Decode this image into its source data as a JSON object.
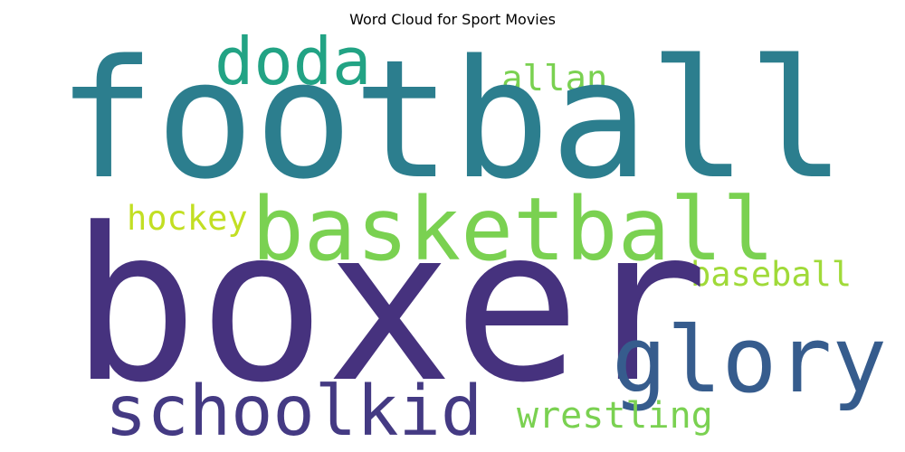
{
  "chart_data": {
    "type": "wordcloud",
    "title": "Word Cloud for Sport Movies",
    "words": [
      {
        "id": "doda",
        "text": "doda",
        "weight": 0.31,
        "color": "#22a384"
      },
      {
        "id": "allan",
        "text": "allan",
        "weight": 0.17,
        "color": "#7ad151"
      },
      {
        "id": "football",
        "text": "football",
        "weight": 0.77,
        "color": "#2c7e8e"
      },
      {
        "id": "hockey",
        "text": "hockey",
        "weight": 0.16,
        "color": "#c2df23"
      },
      {
        "id": "basketball",
        "text": "basketball",
        "weight": 0.41,
        "color": "#7ad151"
      },
      {
        "id": "baseball",
        "text": "baseball",
        "weight": 0.16,
        "color": "#a0da39"
      },
      {
        "id": "boxer",
        "text": "boxer",
        "weight": 1.0,
        "color": "#46327e"
      },
      {
        "id": "glory",
        "text": "glory",
        "weight": 0.43,
        "color": "#365c8d"
      },
      {
        "id": "schoolkid",
        "text": "schoolkid",
        "weight": 0.33,
        "color": "#443a83"
      },
      {
        "id": "wrestling",
        "text": "wrestling",
        "weight": 0.17,
        "color": "#7ad151"
      }
    ]
  }
}
